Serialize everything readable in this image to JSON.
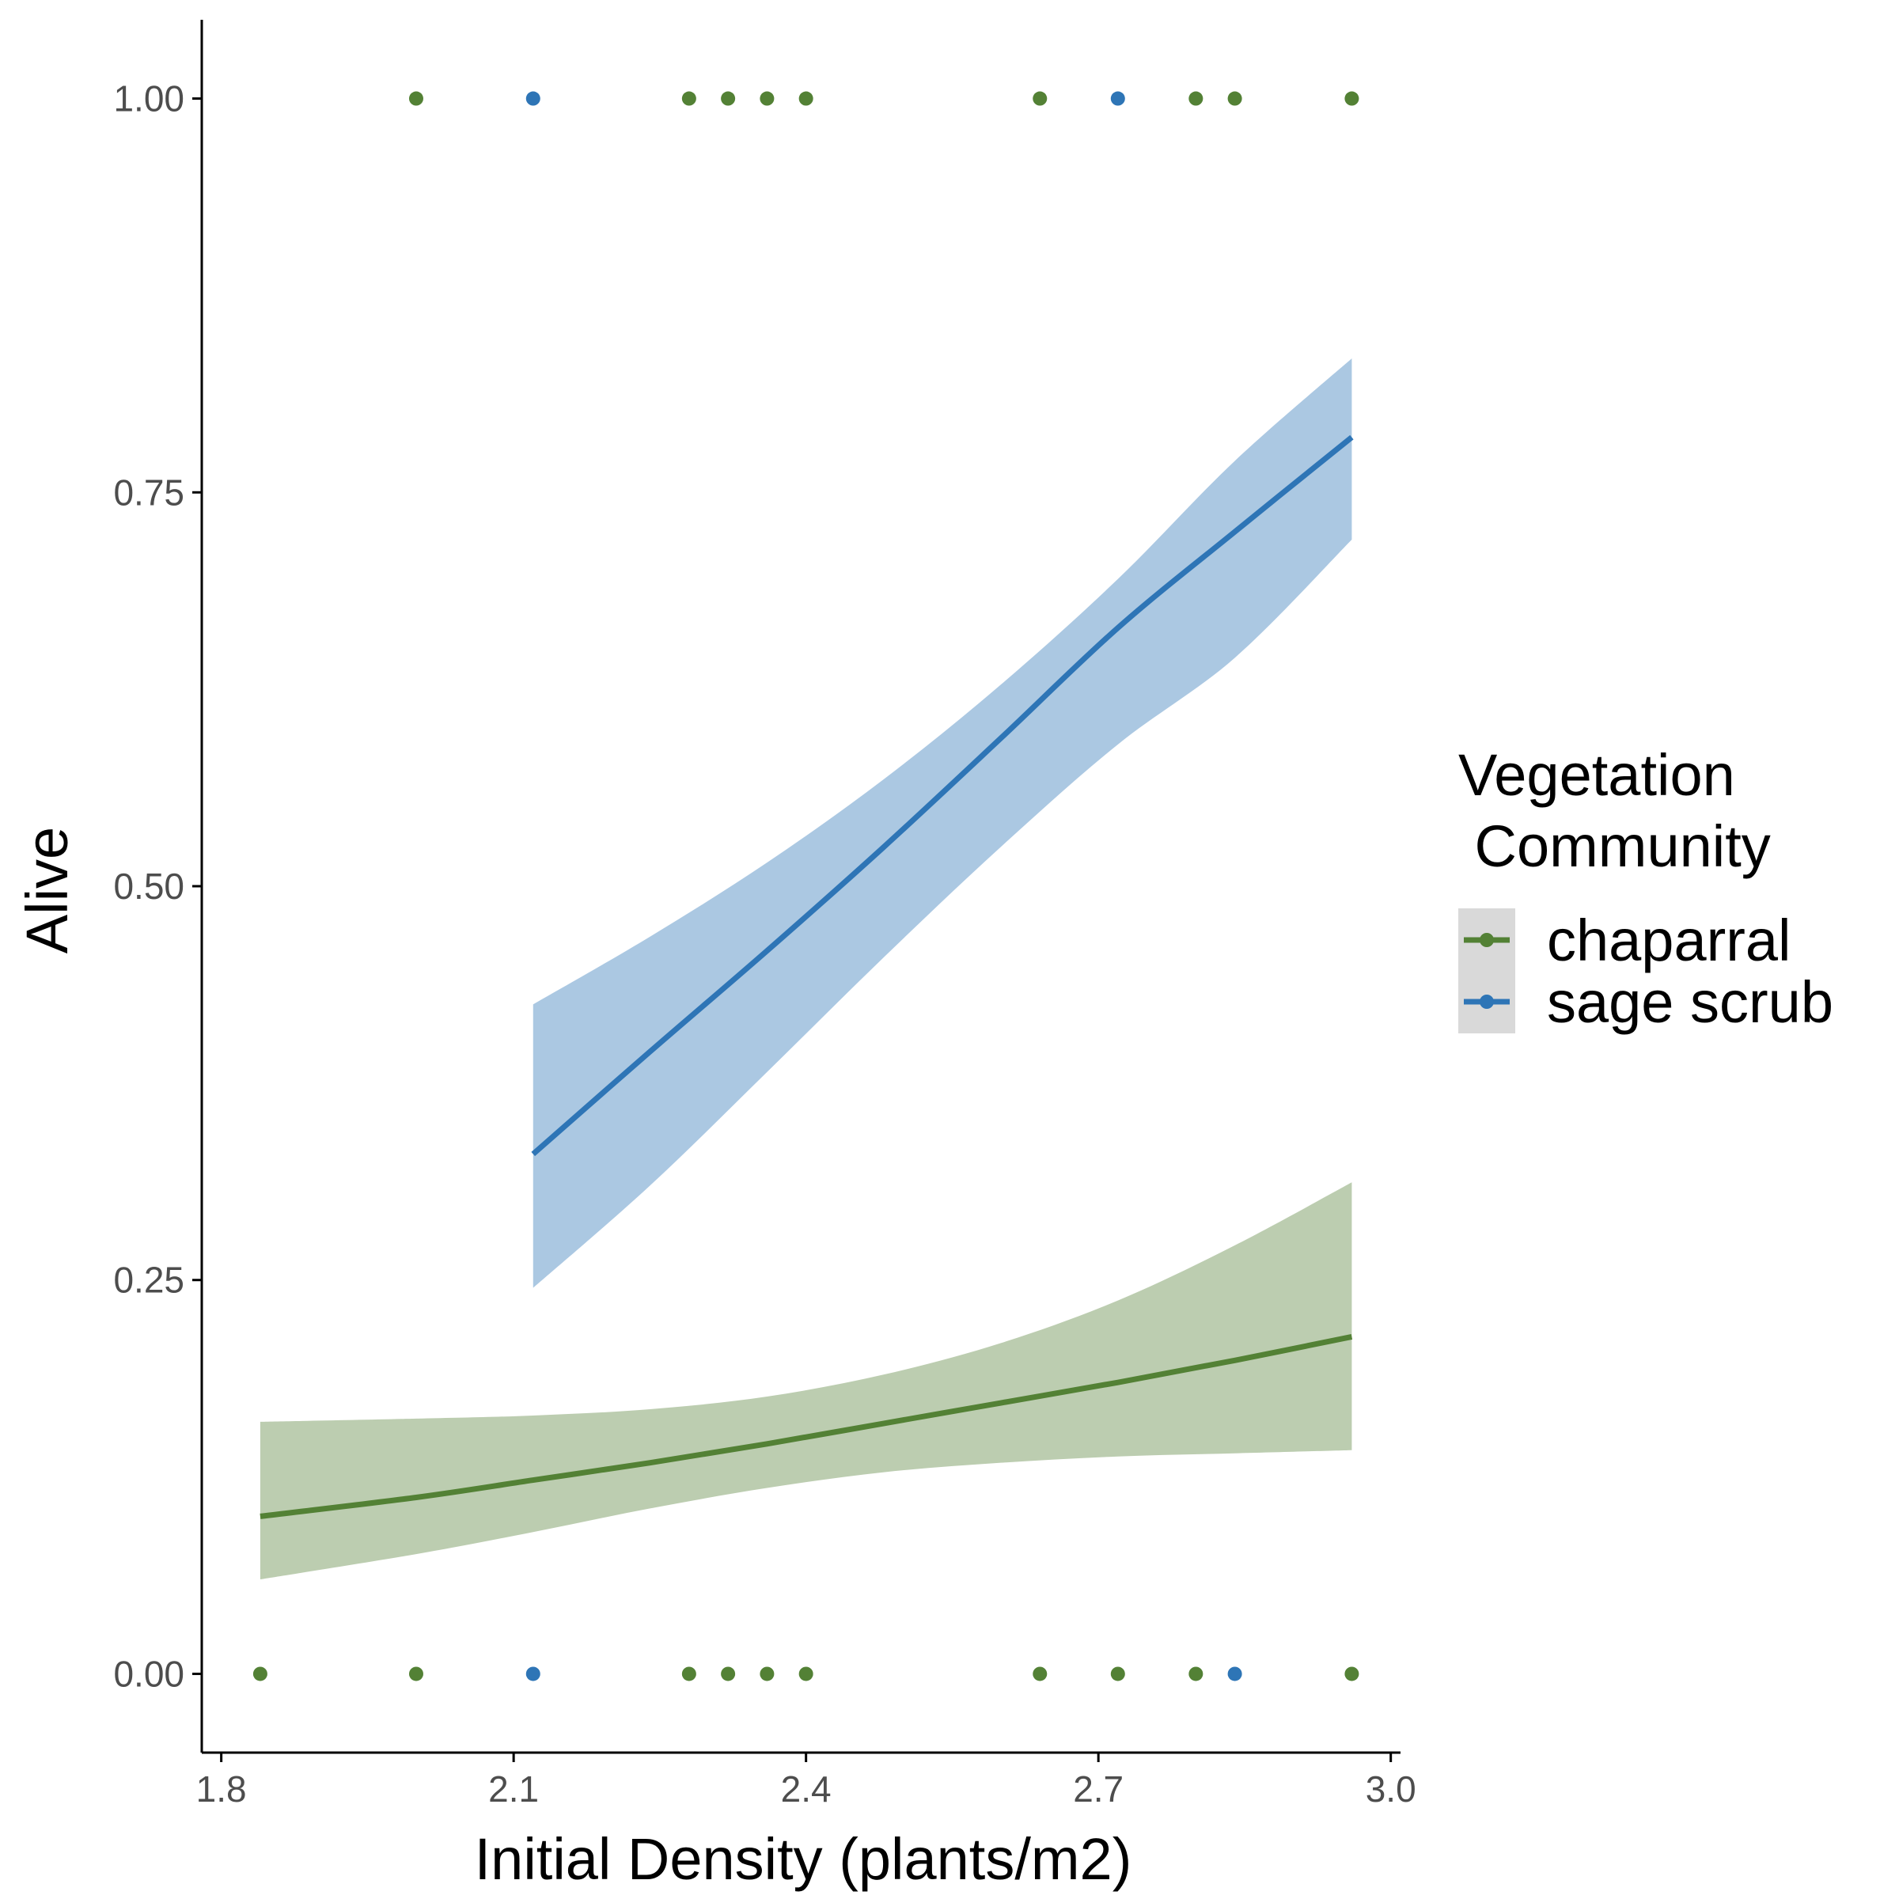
{
  "chart_data": {
    "type": "scatter",
    "xlabel": "Initial Density (plants/m2)",
    "ylabel": "Alive",
    "xlim": [
      1.78,
      3.01
    ],
    "ylim": [
      -0.05,
      1.05
    ],
    "x_ticks": [
      1.8,
      2.1,
      2.4,
      2.7,
      3.0
    ],
    "x_tick_labels": [
      "1.8",
      "2.1",
      "2.4",
      "2.7",
      "3.0"
    ],
    "y_ticks": [
      0,
      0.25,
      0.5,
      0.75,
      1.0
    ],
    "y_tick_labels": [
      "0.00",
      "0.25",
      "0.50",
      "0.75",
      "1.00"
    ],
    "grid": false,
    "legend": {
      "title_lines": [
        "Vegetation",
        " Community"
      ],
      "placement": "right"
    },
    "series": [
      {
        "name": "chaparral",
        "color": "#538135",
        "ribbon_color": "#bccdb0",
        "points": [
          {
            "x": 1.84,
            "y": 0
          },
          {
            "x": 2.0,
            "y": 0
          },
          {
            "x": 2.28,
            "y": 0
          },
          {
            "x": 2.32,
            "y": 0
          },
          {
            "x": 2.36,
            "y": 0
          },
          {
            "x": 2.4,
            "y": 0
          },
          {
            "x": 2.64,
            "y": 0
          },
          {
            "x": 2.72,
            "y": 0
          },
          {
            "x": 2.8,
            "y": 0
          },
          {
            "x": 2.96,
            "y": 0
          },
          {
            "x": 2.0,
            "y": 1
          },
          {
            "x": 2.28,
            "y": 1
          },
          {
            "x": 2.32,
            "y": 1
          },
          {
            "x": 2.36,
            "y": 1
          },
          {
            "x": 2.4,
            "y": 1
          },
          {
            "x": 2.64,
            "y": 1
          },
          {
            "x": 2.8,
            "y": 1
          },
          {
            "x": 2.84,
            "y": 1
          },
          {
            "x": 2.96,
            "y": 1
          }
        ],
        "fit": [
          {
            "x": 1.84,
            "y": 0.1,
            "lower": 0.06,
            "upper": 0.16
          },
          {
            "x": 2.0,
            "y": 0.112,
            "lower": 0.076,
            "upper": 0.162
          },
          {
            "x": 2.12,
            "y": 0.123,
            "lower": 0.09,
            "upper": 0.164
          },
          {
            "x": 2.24,
            "y": 0.134,
            "lower": 0.105,
            "upper": 0.168
          },
          {
            "x": 2.36,
            "y": 0.146,
            "lower": 0.118,
            "upper": 0.176
          },
          {
            "x": 2.48,
            "y": 0.159,
            "lower": 0.128,
            "upper": 0.19
          },
          {
            "x": 2.6,
            "y": 0.172,
            "lower": 0.134,
            "upper": 0.21
          },
          {
            "x": 2.72,
            "y": 0.185,
            "lower": 0.138,
            "upper": 0.237
          },
          {
            "x": 2.84,
            "y": 0.199,
            "lower": 0.14,
            "upper": 0.272
          },
          {
            "x": 2.96,
            "y": 0.214,
            "lower": 0.142,
            "upper": 0.312
          }
        ]
      },
      {
        "name": "sage scrub",
        "color": "#2e75b6",
        "ribbon_color": "#abc8e2",
        "points": [
          {
            "x": 2.12,
            "y": 1
          },
          {
            "x": 2.72,
            "y": 1
          },
          {
            "x": 2.12,
            "y": 0
          },
          {
            "x": 2.84,
            "y": 0
          }
        ],
        "fit": [
          {
            "x": 2.12,
            "y": 0.33,
            "lower": 0.245,
            "upper": 0.425
          },
          {
            "x": 2.24,
            "y": 0.395,
            "lower": 0.31,
            "upper": 0.468
          },
          {
            "x": 2.36,
            "y": 0.459,
            "lower": 0.382,
            "upper": 0.515
          },
          {
            "x": 2.48,
            "y": 0.525,
            "lower": 0.455,
            "upper": 0.568
          },
          {
            "x": 2.6,
            "y": 0.594,
            "lower": 0.525,
            "upper": 0.628
          },
          {
            "x": 2.72,
            "y": 0.664,
            "lower": 0.59,
            "upper": 0.695
          },
          {
            "x": 2.84,
            "y": 0.725,
            "lower": 0.645,
            "upper": 0.77
          },
          {
            "x": 2.96,
            "y": 0.785,
            "lower": 0.72,
            "upper": 0.835
          }
        ]
      }
    ]
  }
}
